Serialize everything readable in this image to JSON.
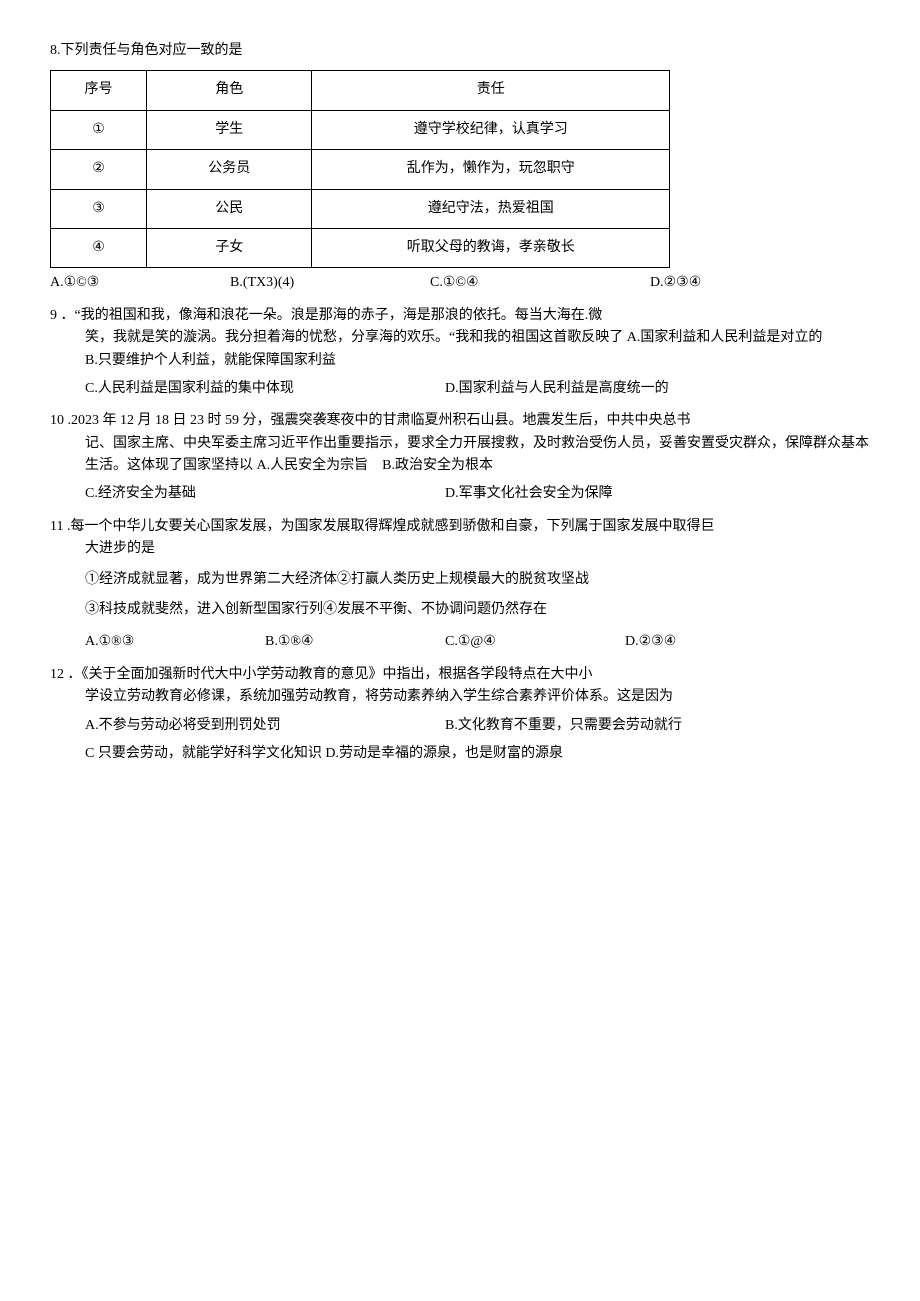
{
  "q8": {
    "header": "8.下列责任与角色对应一致的是",
    "table": {
      "headers": {
        "sn": "序号",
        "role": "角色",
        "duty": "责任"
      },
      "rows": [
        {
          "sn": "①",
          "role": "学生",
          "duty": "遵守学校纪律，认真学习"
        },
        {
          "sn": "②",
          "role": "公务员",
          "duty": "乱作为，懒作为，玩忽职守"
        },
        {
          "sn": "③",
          "role": "公民",
          "duty": "遵纪守法，热爱祖国"
        },
        {
          "sn": "④",
          "role": "子女",
          "duty": "听取父母的教诲，孝亲敬长"
        }
      ]
    },
    "options": {
      "a": "A.①©③",
      "b": "B.(TX3)(4)",
      "c": "C.①©④",
      "d": "D.②③④"
    }
  },
  "q9": {
    "stem1": "9 ．“我的祖国和我，像海和浪花一朵。浪是那海的赤子，海是那浪的依托。每当大海在.微",
    "stem2": "笑，我就是笑的漩涡。我分担着海的忧愁，分享海的欢乐。“我和我的祖国这首歌反映了 A.国家利益和人民利益是对立的　　　　　　　　　　　B.只要维护个人利益，就能保障国家利益",
    "optC": "C.人民利益是国家利益的集中体现",
    "optD": "D.国家利益与人民利益是高度统一的"
  },
  "q10": {
    "stem1": "10 .2023 年 12 月 18 日 23 时 59 分，强震突袭寒夜中的甘肃临夏州积石山县。地震发生后，中共中央总书",
    "stem2": "记、国家主席、中央军委主席习近平作出重要指示，要求全力开展搜救，及时救治受伤人员，妥善安置受灾群众，保障群众基本生活。这体现了国家坚持以 A.人民安全为宗旨　B.政治安全为根本",
    "optC": "C.经济安全为基础",
    "optD": "D.军事文化社会安全为保障"
  },
  "q11": {
    "stem1": "11 .每一个中华儿女要关心国家发展，为国家发展取得辉煌成就感到骄傲和自豪，下列属于国家发展中取得巨",
    "stem2": "大进步的是",
    "sub1": "①经济成就显著，成为世界第二大经济体②打赢人类历史上规模最大的脱贫攻坚战",
    "sub2": "③科技成就斐然，进入创新型国家行列④发展不平衡、不协调问题仍然存在",
    "options": {
      "a": "A.①®③",
      "b": "B.①®④",
      "c": "C.①@④",
      "d": "D.②③④"
    }
  },
  "q12": {
    "stem1": "12 ．《关于全面加强新时代大中小学劳动教育的意见》中指出，根据各学段特点在大中小",
    "stem2": "学设立劳动教育必修课，系统加强劳动教育，将劳动素养纳入学生综合素养评价体系。这是因为",
    "optA": "A.不参与劳动必将受到刑罚处罚",
    "optB": "B.文化教育不重要，只需要会劳动就行",
    "optCD": "C 只要会劳动，就能学好科学文化知识 D.劳动是幸福的源泉，也是财富的源泉"
  }
}
